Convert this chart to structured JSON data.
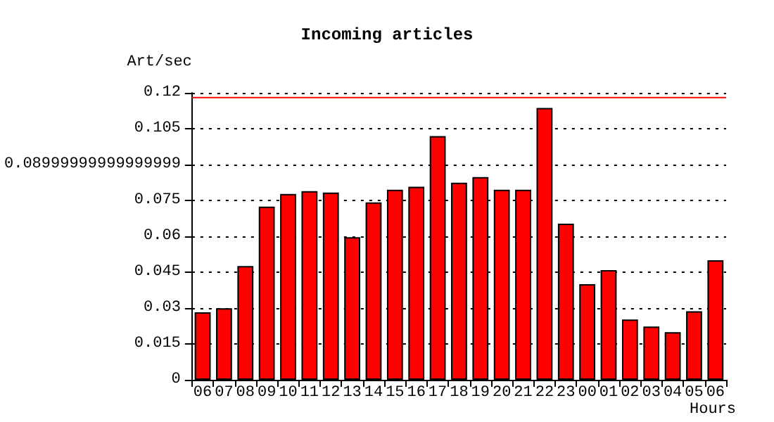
{
  "chart_data": {
    "type": "bar",
    "title": "Incoming articles",
    "xlabel": "Hours",
    "ylabel": "Art/sec",
    "categories": [
      "06",
      "07",
      "08",
      "09",
      "10",
      "11",
      "12",
      "13",
      "14",
      "15",
      "16",
      "17",
      "18",
      "19",
      "20",
      "21",
      "22",
      "23",
      "00",
      "01",
      "02",
      "03",
      "04",
      "05",
      "06"
    ],
    "values": [
      0.0282,
      0.0299,
      0.0476,
      0.0724,
      0.0777,
      0.0789,
      0.0783,
      0.0596,
      0.0742,
      0.0795,
      0.0807,
      0.1019,
      0.0824,
      0.0848,
      0.0795,
      0.0795,
      0.1137,
      0.0653,
      0.04,
      0.0459,
      0.0252,
      0.0223,
      0.0199,
      0.0287,
      0.05
    ],
    "color": "#ff0000",
    "ylim": [
      0,
      0.12
    ],
    "yticks": [
      0,
      0.015,
      0.03,
      0.045,
      0.06,
      0.075,
      {
        "value": 0.09,
        "label": "0.08999999999999999"
      },
      0.105,
      0.12
    ],
    "ref_lines": [
      {
        "axis": "y",
        "value": 0.118,
        "color": "#ff0000",
        "line_style": "solid"
      }
    ],
    "grid": "y"
  }
}
